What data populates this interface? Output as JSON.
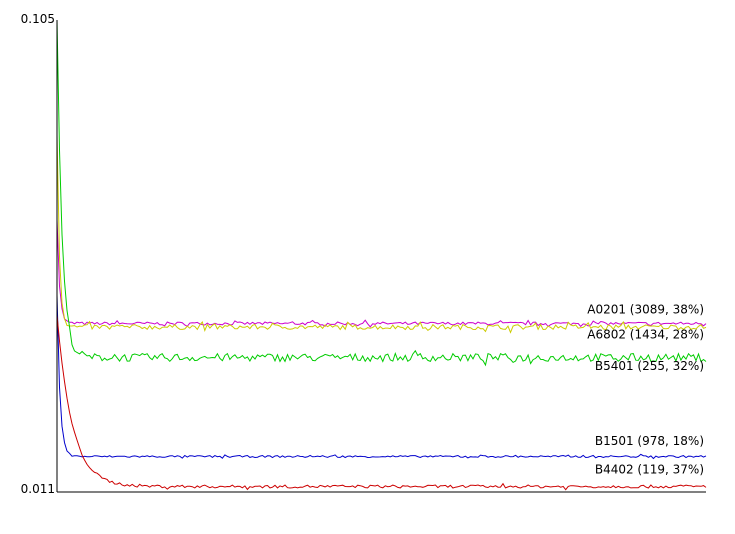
{
  "chart_data": {
    "type": "line",
    "title": "",
    "xlabel": "",
    "ylabel": "",
    "ylim": [
      0.011,
      0.105
    ],
    "y_tick_labels": [
      "0.105",
      "0.011"
    ],
    "grid": false,
    "legend": "inline-right",
    "points_per_series": 260,
    "series": [
      {
        "name": "A0201 (3089, 38%)",
        "color": "#cc00cc",
        "start": 0.065,
        "plateau": 0.0443,
        "noise": 0.0003,
        "decay": 1.0,
        "label_y": 0.0463
      },
      {
        "name": "A6802 (1434, 28%)",
        "color": "#cccc00",
        "start": 0.082,
        "plateau": 0.0436,
        "noise": 0.0005,
        "decay": 1.0,
        "label_y": 0.0413
      },
      {
        "name": "B5401 (255, 32%)",
        "color": "#00cc00",
        "start": 0.105,
        "plateau": 0.0375,
        "noise": 0.0008,
        "decay": 2.0,
        "label_y": 0.035
      },
      {
        "name": "B1501 (978, 18%)",
        "color": "#0000cc",
        "start": 0.05,
        "plateau": 0.0177,
        "noise": 0.0002,
        "decay": 1.2,
        "label_y": 0.02
      },
      {
        "name": "B4402 (119, 37%)",
        "color": "#cc0000",
        "start": 0.046,
        "plateau": 0.0117,
        "noise": 0.0003,
        "decay": 6.0,
        "label_y": 0.0143
      }
    ]
  }
}
